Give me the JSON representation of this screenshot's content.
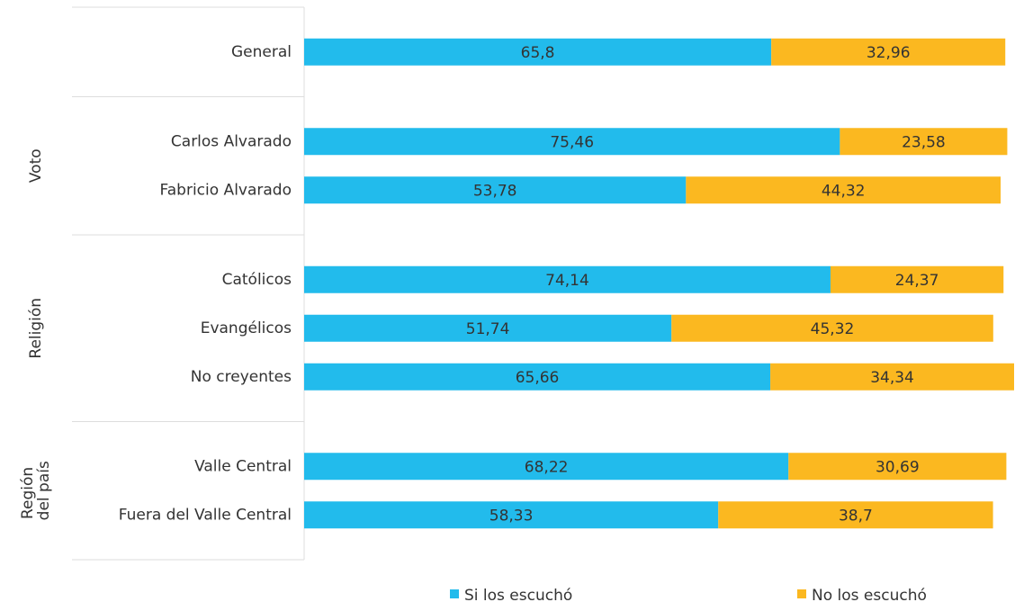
{
  "chart_data": {
    "type": "stacked-bar-horizontal",
    "groups": [
      {
        "label": null,
        "categories": [
          "General"
        ]
      },
      {
        "label": "Voto",
        "categories": [
          "Carlos Alvarado",
          "Fabricio Alvarado"
        ]
      },
      {
        "label": "Religión",
        "categories": [
          "Católicos",
          "Evangélicos",
          "No creyentes"
        ]
      },
      {
        "label": "Región del país",
        "categories": [
          "Valle Central",
          "Fuera del Valle Central"
        ]
      }
    ],
    "series": [
      {
        "name": "Si los escuchó",
        "color": "#22bbec",
        "values": [
          65.8,
          75.46,
          53.78,
          74.14,
          51.74,
          65.66,
          68.22,
          58.33
        ],
        "value_labels": [
          "65,8",
          "75,46",
          "53,78",
          "74,14",
          "51,74",
          "65,66",
          "68,22",
          "58,33"
        ]
      },
      {
        "name": "No los escuchó",
        "color": "#fbb820",
        "values": [
          32.96,
          23.58,
          44.32,
          24.37,
          45.32,
          34.34,
          30.69,
          38.7
        ],
        "value_labels": [
          "32,96",
          "23,58",
          "44,32",
          "24,37",
          "45,32",
          "34,34",
          "30,69",
          "38,7"
        ]
      }
    ],
    "xlim": [
      0,
      100
    ]
  }
}
